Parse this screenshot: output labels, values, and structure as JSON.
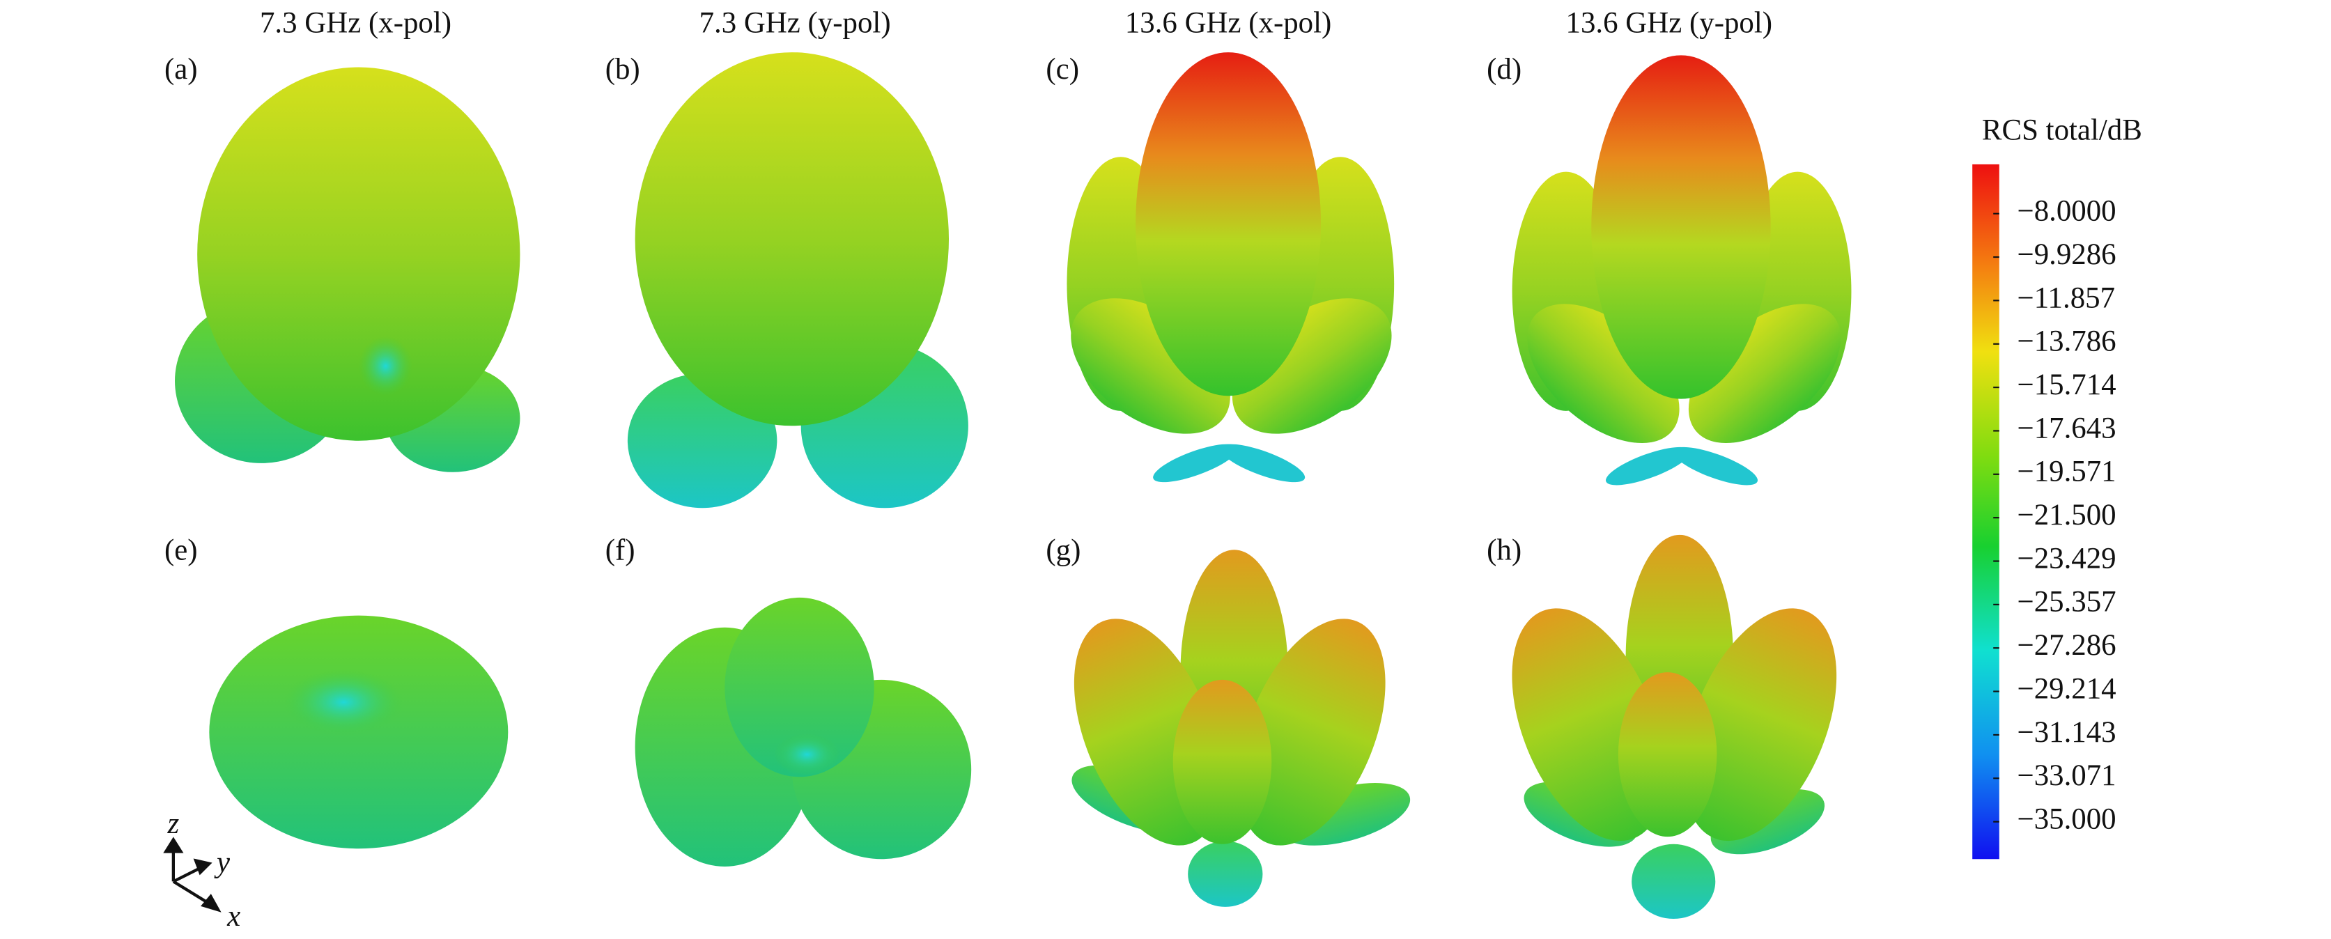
{
  "headers": [
    "7.3 GHz (x-pol)",
    "7.3 GHz (y-pol)",
    "13.6 GHz (x-pol)",
    "13.6 GHz (y-pol)"
  ],
  "panels": [
    "(a)",
    "(b)",
    "(c)",
    "(d)",
    "(e)",
    "(f)",
    "(g)",
    "(h)"
  ],
  "colorbar": {
    "title": "RCS total/dB",
    "ticks": [
      "−8.0000",
      "−9.9286",
      "−11.857",
      "−13.786",
      "−15.714",
      "−17.643",
      "−19.571",
      "−21.500",
      "−23.429",
      "−25.357",
      "−27.286",
      "−29.214",
      "−31.143",
      "−33.071",
      "−35.000"
    ]
  },
  "axes": {
    "z": "z",
    "y": "y",
    "x": "x"
  }
}
